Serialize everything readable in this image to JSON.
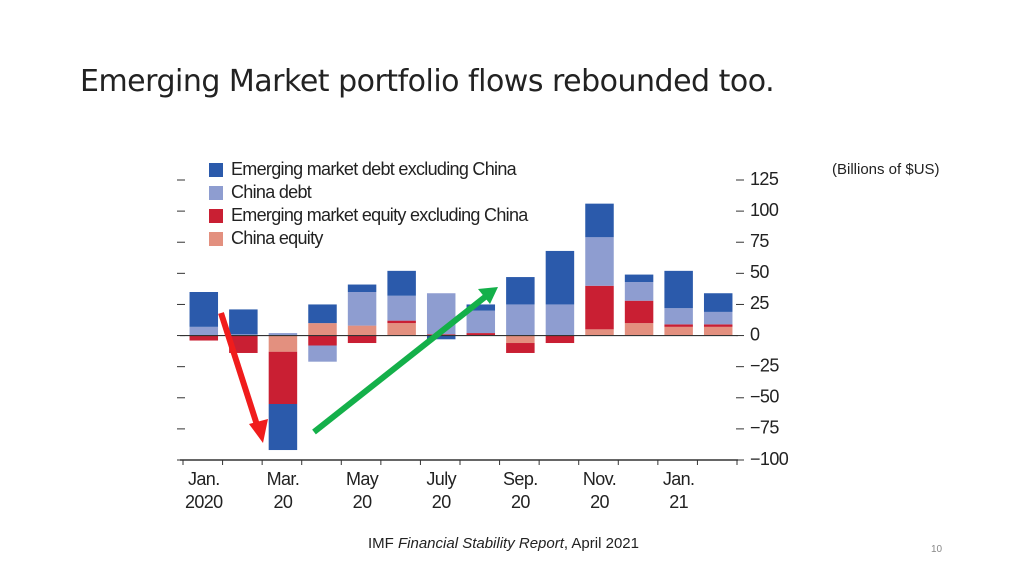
{
  "title": "Emerging Market portfolio flows rebounded too.",
  "source": {
    "prefix": "IMF",
    "italic": "Financial Stability Report",
    "suffix": ", April 2021"
  },
  "page_number": "10",
  "chart_data": {
    "type": "stacked_bar",
    "unit_label": "(Billions of $US)",
    "categories": [
      "Jan. 2020",
      null,
      "Mar. 20",
      null,
      "May 20",
      null,
      "July 20",
      null,
      "Sep. 20",
      null,
      "Nov. 20",
      null,
      "Jan. 21",
      null
    ],
    "series": [
      {
        "name": "Emerging market debt excluding China",
        "color": "#2b5aab",
        "values": [
          28,
          20,
          -37,
          15,
          6,
          20,
          -3,
          5,
          22,
          43,
          27,
          6,
          30,
          15
        ]
      },
      {
        "name": "China debt",
        "color": "#8e9dd0",
        "values": [
          7,
          1,
          2,
          -13,
          27,
          20,
          33,
          18,
          25,
          25,
          39,
          15,
          13,
          10
        ]
      },
      {
        "name": "Emerging market equity excluding China",
        "color": "#c91f33",
        "values": [
          -4,
          -14,
          -42,
          -8,
          -6,
          2,
          1,
          2,
          -8,
          -6,
          35,
          18,
          2,
          2
        ]
      },
      {
        "name": "China equity",
        "color": "#e3907f",
        "values": [
          0,
          0,
          -13,
          10,
          8,
          10,
          0,
          0,
          -6,
          0,
          5,
          10,
          7,
          7
        ]
      }
    ],
    "ylim": [
      -100,
      125
    ],
    "yticks": [
      {
        "value": -100,
        "label": "−100"
      },
      {
        "value": -75,
        "label": "−75"
      },
      {
        "value": -50,
        "label": "−50"
      },
      {
        "value": -25,
        "label": "−25"
      },
      0,
      25,
      50,
      75,
      100,
      125
    ],
    "legend": "upper left"
  }
}
